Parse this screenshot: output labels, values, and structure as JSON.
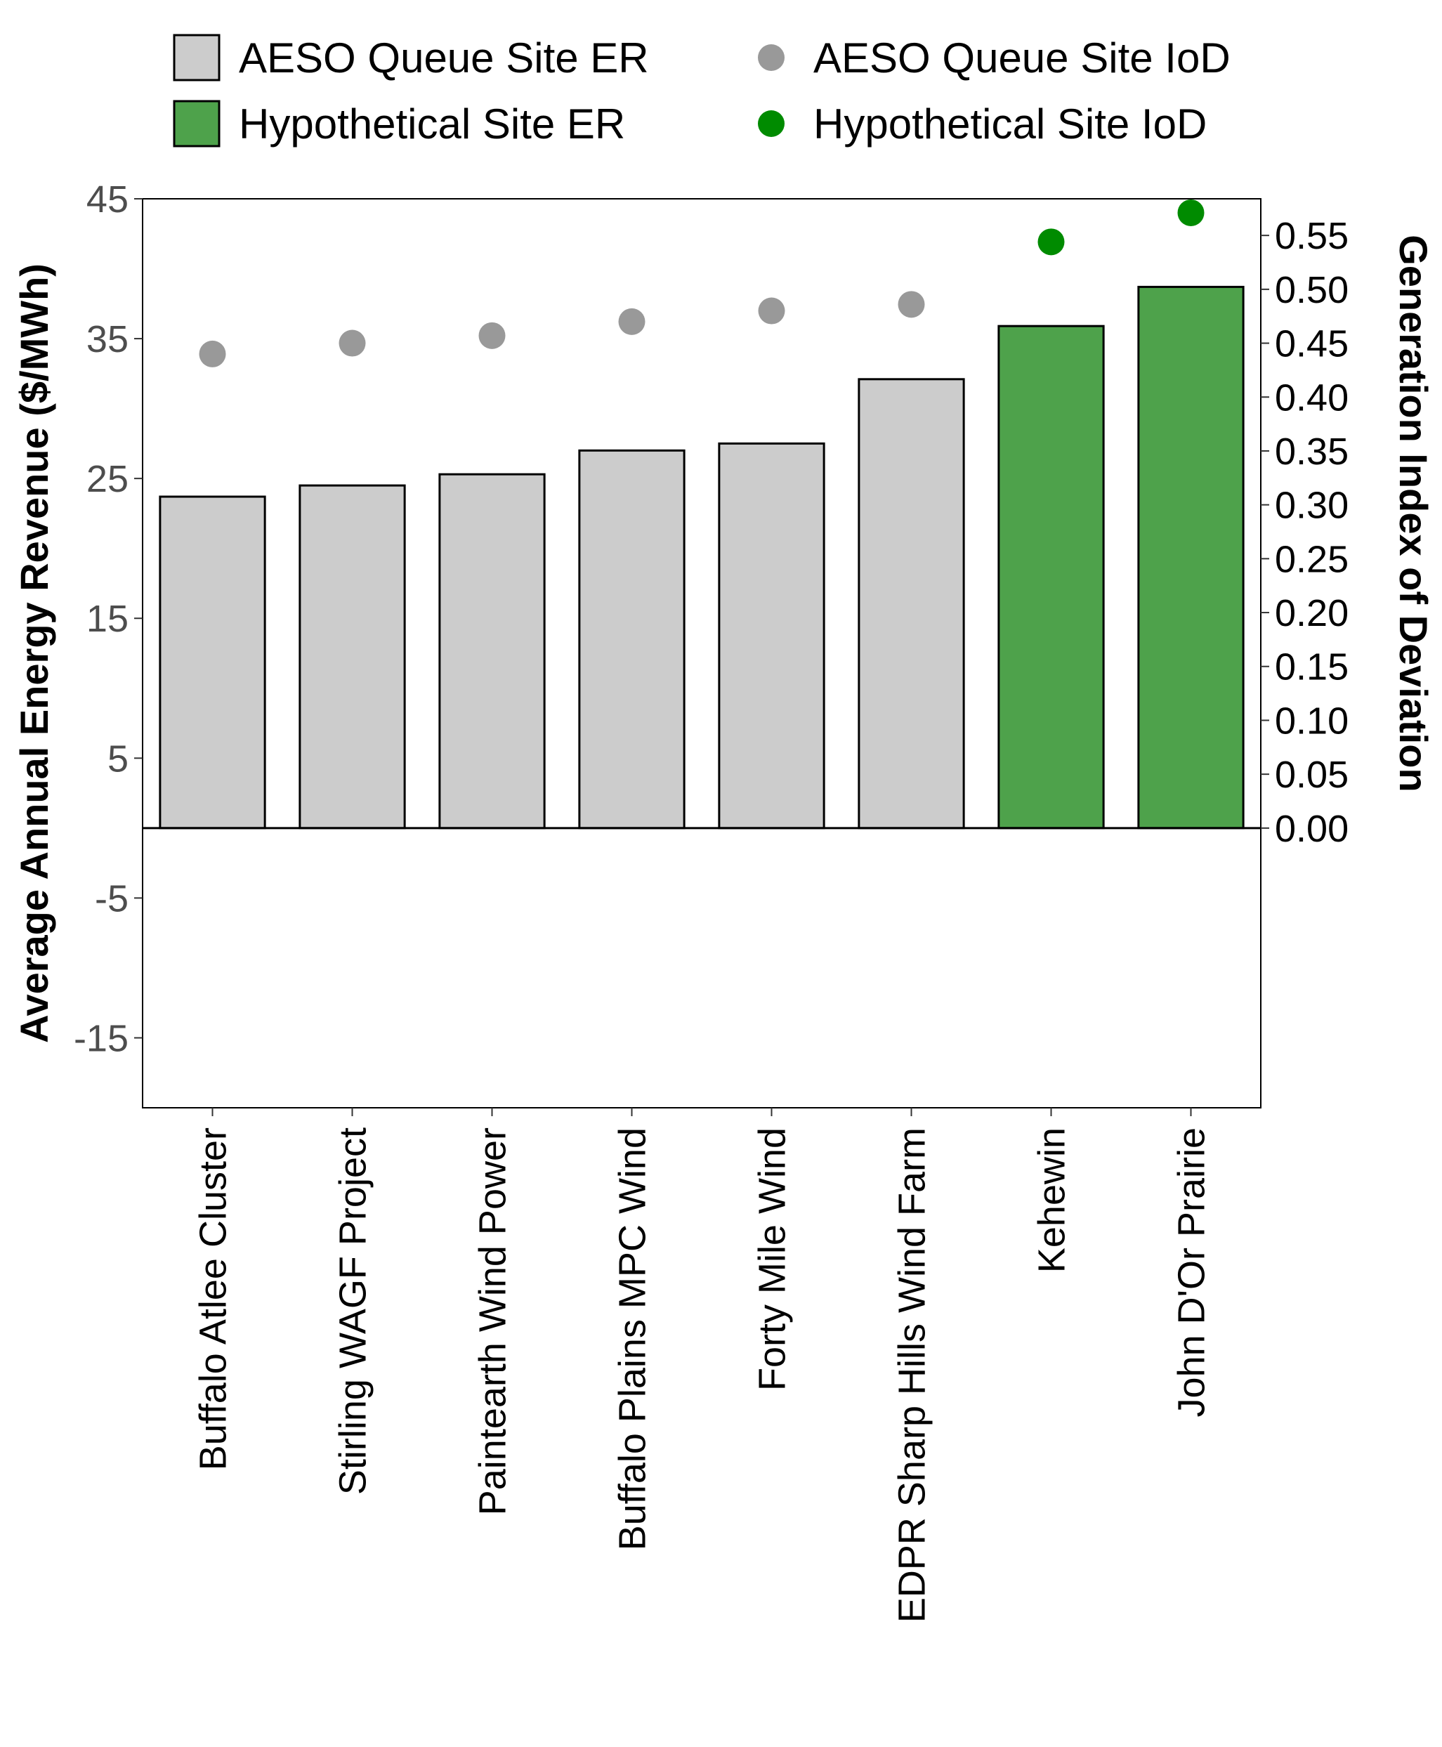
{
  "chart_data": {
    "type": "bar",
    "categories": [
      "Buffalo Atlee Cluster",
      "Stirling WAGF Project",
      "Paintearth Wind Power",
      "Buffalo Plains MPC Wind",
      "Forty Mile Wind",
      "EDPR Sharp Hills Wind Farm",
      "Kehewin",
      "John D'Or Prairie"
    ],
    "groups": [
      "aeso",
      "aeso",
      "aeso",
      "aeso",
      "aeso",
      "aeso",
      "hypothetical",
      "hypothetical"
    ],
    "series": [
      {
        "name": "ER",
        "axis": "left",
        "values": [
          23.7,
          24.5,
          25.3,
          27.0,
          27.5,
          32.1,
          35.9,
          38.7
        ]
      },
      {
        "name": "IoD",
        "axis": "right",
        "values": [
          0.44,
          0.45,
          0.457,
          0.47,
          0.48,
          0.486,
          0.544,
          0.571
        ]
      }
    ],
    "ylabel": "Average Annual Energy Revenue ($/MWh)",
    "y2label": "Generation Index of Deviation",
    "ylim": [
      -20,
      45
    ],
    "y2lim": [
      0,
      0.584
    ],
    "yticks": [
      45,
      35,
      25,
      15,
      5,
      -5,
      -15
    ],
    "y2ticks": [
      "0.55",
      "0.50",
      "0.45",
      "0.40",
      "0.35",
      "0.30",
      "0.25",
      "0.20",
      "0.15",
      "0.10",
      "0.05",
      "0.00"
    ],
    "legend": {
      "placement": "top",
      "entries": [
        {
          "label": "AESO Queue Site ER",
          "shape": "square",
          "color": "#cccccc"
        },
        {
          "label": "AESO Queue Site IoD",
          "shape": "circle",
          "color": "#999999"
        },
        {
          "label": "Hypothetical Site ER",
          "shape": "square",
          "color": "#4ea24b"
        },
        {
          "label": "Hypothetical Site IoD",
          "shape": "circle",
          "color": "#008b00"
        }
      ]
    },
    "colors": {
      "aeso_bar": "#cccccc",
      "aeso_point": "#999999",
      "hyp_bar": "#4ea24b",
      "hyp_point": "#008b00"
    },
    "grid": false
  }
}
